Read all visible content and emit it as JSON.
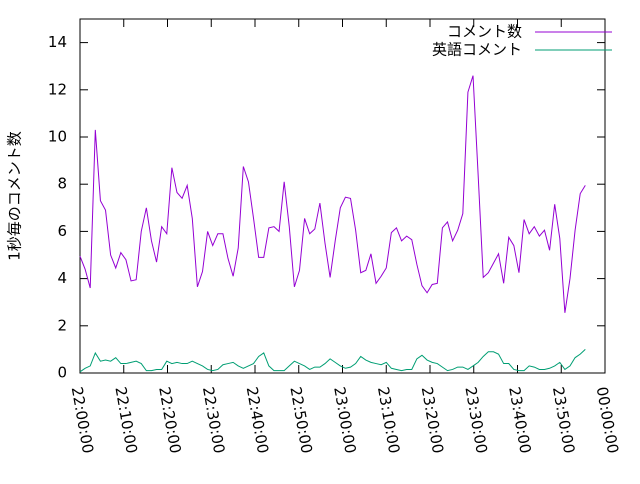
{
  "chart_data": {
    "type": "line",
    "ylabel": "1秒毎のコメント数",
    "x": [
      "22:00:00",
      "22:01:10",
      "22:02:20",
      "22:03:30",
      "22:04:40",
      "22:05:50",
      "22:07:00",
      "22:08:10",
      "22:09:20",
      "22:10:30",
      "22:11:40",
      "22:12:50",
      "22:14:00",
      "22:15:10",
      "22:16:20",
      "22:17:30",
      "22:18:40",
      "22:19:50",
      "22:21:00",
      "22:22:10",
      "22:23:20",
      "22:24:30",
      "22:25:40",
      "22:26:50",
      "22:28:00",
      "22:29:10",
      "22:30:20",
      "22:31:30",
      "22:32:40",
      "22:33:50",
      "22:35:00",
      "22:36:10",
      "22:37:20",
      "22:38:30",
      "22:39:40",
      "22:40:50",
      "22:42:00",
      "22:43:10",
      "22:44:20",
      "22:45:30",
      "22:46:40",
      "22:47:50",
      "22:49:00",
      "22:50:10",
      "22:51:20",
      "22:52:30",
      "22:53:40",
      "22:54:50",
      "22:56:00",
      "22:57:10",
      "22:58:20",
      "22:59:30",
      "23:00:40",
      "23:01:50",
      "23:03:00",
      "23:04:10",
      "23:05:20",
      "23:06:30",
      "23:07:40",
      "23:08:50",
      "23:10:00",
      "23:11:10",
      "23:12:20",
      "23:13:30",
      "23:14:40",
      "23:15:50",
      "23:17:00",
      "23:18:10",
      "23:19:20",
      "23:20:30",
      "23:21:40",
      "23:22:50",
      "23:24:00",
      "23:25:10",
      "23:26:20",
      "23:27:30",
      "23:28:40",
      "23:29:50",
      "23:31:00",
      "23:32:10",
      "23:33:20",
      "23:34:30",
      "23:35:40",
      "23:36:50",
      "23:38:00",
      "23:39:10",
      "23:40:20",
      "23:41:30",
      "23:42:40",
      "23:43:50",
      "23:45:00",
      "23:46:10",
      "23:47:20",
      "23:48:30",
      "23:49:40",
      "23:50:50",
      "23:52:00",
      "23:53:10",
      "23:54:20",
      "23:55:30"
    ],
    "series": [
      {
        "name": "コメント数",
        "color": "#9400d3",
        "values": [
          4.95,
          4.4,
          3.6,
          10.3,
          7.3,
          6.9,
          5.0,
          4.45,
          5.1,
          4.8,
          3.9,
          3.95,
          6.0,
          7.0,
          5.6,
          4.7,
          6.2,
          5.9,
          8.7,
          7.65,
          7.4,
          7.95,
          6.55,
          3.65,
          4.3,
          6.0,
          5.4,
          5.9,
          5.9,
          4.85,
          4.1,
          5.3,
          8.75,
          8.1,
          6.55,
          4.9,
          4.9,
          6.15,
          6.2,
          6.0,
          8.1,
          6.2,
          3.65,
          4.35,
          6.55,
          5.9,
          6.1,
          7.2,
          5.5,
          4.05,
          5.6,
          7.0,
          7.45,
          7.4,
          6.05,
          4.25,
          4.35,
          5.05,
          3.8,
          4.1,
          4.45,
          5.95,
          6.15,
          5.6,
          5.8,
          5.65,
          4.6,
          3.7,
          3.4,
          3.75,
          3.8,
          6.15,
          6.4,
          5.6,
          6.05,
          6.75,
          11.9,
          12.6,
          8.4,
          4.05,
          4.25,
          4.65,
          5.05,
          3.8,
          5.75,
          5.4,
          4.25,
          6.5,
          5.9,
          6.2,
          5.8,
          6.05,
          5.2,
          7.15,
          5.7,
          2.55,
          4.0,
          6.05,
          7.6,
          7.95
        ]
      },
      {
        "name": "英語コメント",
        "color": "#009e73",
        "values": [
          0.05,
          0.2,
          0.3,
          0.85,
          0.5,
          0.55,
          0.5,
          0.65,
          0.4,
          0.4,
          0.45,
          0.5,
          0.4,
          0.1,
          0.1,
          0.15,
          0.15,
          0.5,
          0.4,
          0.45,
          0.4,
          0.4,
          0.5,
          0.4,
          0.3,
          0.15,
          0.1,
          0.15,
          0.35,
          0.4,
          0.45,
          0.3,
          0.2,
          0.3,
          0.4,
          0.7,
          0.85,
          0.3,
          0.1,
          0.1,
          0.1,
          0.3,
          0.5,
          0.4,
          0.3,
          0.15,
          0.25,
          0.25,
          0.4,
          0.6,
          0.45,
          0.3,
          0.2,
          0.25,
          0.4,
          0.7,
          0.55,
          0.45,
          0.4,
          0.35,
          0.45,
          0.2,
          0.15,
          0.1,
          0.15,
          0.15,
          0.6,
          0.75,
          0.55,
          0.45,
          0.4,
          0.25,
          0.1,
          0.15,
          0.25,
          0.25,
          0.15,
          0.3,
          0.45,
          0.7,
          0.9,
          0.9,
          0.8,
          0.4,
          0.4,
          0.15,
          0.1,
          0.1,
          0.3,
          0.25,
          0.15,
          0.15,
          0.2,
          0.3,
          0.45,
          0.15,
          0.3,
          0.65,
          0.8,
          1.0
        ]
      }
    ],
    "xlim": [
      "22:00:00",
      "00:00:00"
    ],
    "xticks": [
      "22:00:00",
      "22:10:00",
      "22:20:00",
      "22:30:00",
      "22:40:00",
      "22:50:00",
      "23:00:00",
      "23:10:00",
      "23:20:00",
      "23:30:00",
      "23:40:00",
      "23:50:00",
      "00:00:00"
    ],
    "ylim": [
      0,
      15
    ],
    "yticks": [
      0,
      2,
      4,
      6,
      8,
      10,
      12,
      14
    ],
    "grid": false,
    "legend": "top-right"
  }
}
